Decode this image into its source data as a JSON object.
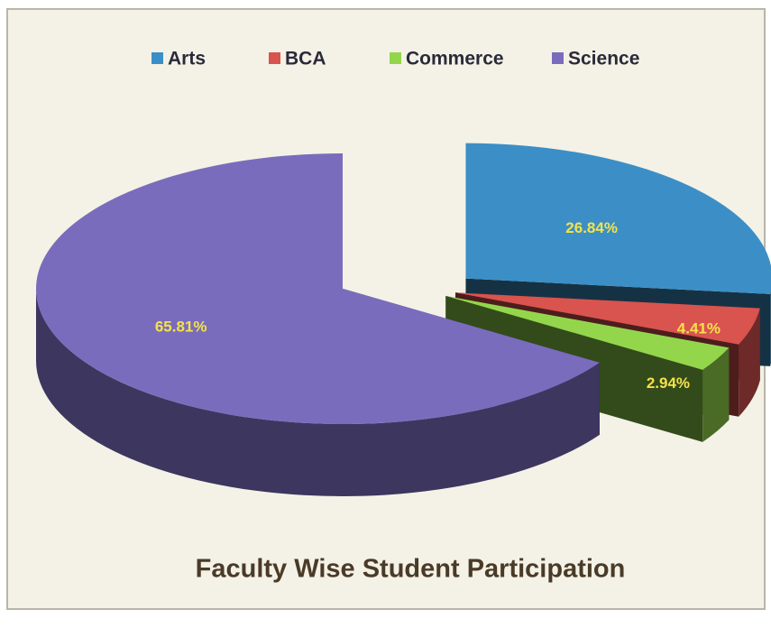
{
  "chart_data": {
    "type": "pie3d",
    "title": "Faculty Wise Student Participation",
    "categories": [
      "Arts",
      "BCA",
      "Commerce",
      "Science"
    ],
    "values": [
      26.84,
      4.41,
      2.94,
      65.81
    ],
    "value_labels": [
      "26.84%",
      "4.41%",
      "2.94%",
      "65.81%"
    ],
    "colors": [
      "#3b8fc6",
      "#d9534f",
      "#93d64c",
      "#7a6cbd"
    ],
    "legend": "top"
  }
}
